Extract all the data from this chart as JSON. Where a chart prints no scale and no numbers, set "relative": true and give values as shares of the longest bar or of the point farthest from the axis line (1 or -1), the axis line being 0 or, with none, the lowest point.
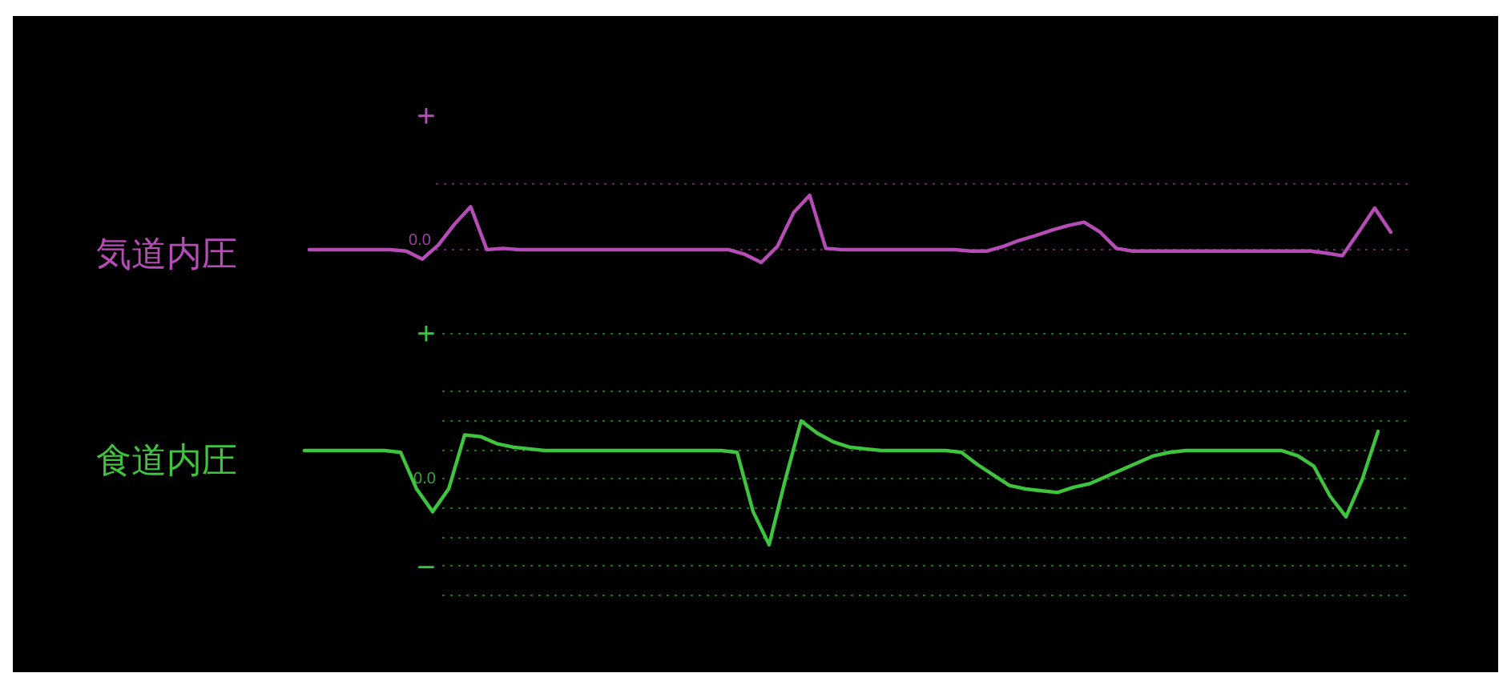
{
  "chart_data": [
    {
      "type": "line",
      "relative": true,
      "ylabel": "気道内圧",
      "annotations": [
        "+",
        "0.0"
      ],
      "ref_lines": [
        {
          "axis": "y",
          "value": 1.17,
          "color": "#b64db6",
          "line_style": "dotted"
        },
        {
          "axis": "y",
          "value": 0.19,
          "color": "#b64db6",
          "line_style": "dotted"
        }
      ],
      "categories": [
        null,
        null,
        null,
        null,
        null,
        null,
        null,
        null,
        null,
        null,
        null,
        null,
        null,
        null,
        null,
        null,
        null,
        null,
        null,
        null,
        null,
        null,
        null,
        null,
        null,
        null,
        null,
        null,
        null,
        null,
        null,
        null,
        null,
        null,
        null,
        null,
        null,
        null,
        null,
        null,
        null,
        null,
        null,
        null,
        null,
        null,
        null,
        null,
        null,
        null,
        null,
        null,
        null,
        null,
        null,
        null,
        null,
        null,
        null,
        null,
        null,
        null,
        null,
        null,
        null,
        null,
        null,
        null
      ],
      "series": [
        {
          "color": "#b64db6",
          "values": [
            0.19,
            0.19,
            0.19,
            0.19,
            0.19,
            0.19,
            0.17,
            0.05,
            0.26,
            0.57,
            0.83,
            0.19,
            0.21,
            0.19,
            0.19,
            0.19,
            0.19,
            0.19,
            0.19,
            0.19,
            0.19,
            0.19,
            0.19,
            0.19,
            0.19,
            0.19,
            0.19,
            0.12,
            0,
            0.24,
            0.74,
            1,
            0.21,
            0.19,
            0.19,
            0.19,
            0.19,
            0.19,
            0.19,
            0.19,
            0.19,
            0.17,
            0.17,
            0.24,
            0.33,
            0.4,
            0.48,
            0.55,
            0.6,
            0.45,
            0.21,
            0.17,
            0.17,
            0.17,
            0.17,
            0.17,
            0.17,
            0.17,
            0.17,
            0.17,
            0.17,
            0.17,
            0.17,
            0.14,
            0.1,
            0.45,
            0.81,
            0.45
          ]
        }
      ]
    },
    {
      "type": "line",
      "relative": true,
      "ylabel": "食道内圧",
      "annotations": [
        "+",
        "0.0",
        "−"
      ],
      "ref_lines": [
        {
          "axis": "y",
          "value": 1.5,
          "color": "#3ec43e",
          "line_style": "dotted"
        },
        {
          "axis": "y",
          "value": 1.17,
          "color": "#3ec43e",
          "line_style": "dotted"
        },
        {
          "axis": "y",
          "value": 1,
          "color": "#3ec43e",
          "line_style": "dotted"
        },
        {
          "axis": "y",
          "value": 0.83,
          "color": "#3ec43e",
          "line_style": "dotted"
        },
        {
          "axis": "y",
          "value": 0.67,
          "color": "#3ec43e",
          "line_style": "dotted"
        },
        {
          "axis": "y",
          "value": 0.5,
          "color": "#3ec43e",
          "line_style": "dotted"
        },
        {
          "axis": "y",
          "value": 0.33,
          "color": "#3ec43e",
          "line_style": "dotted"
        },
        {
          "axis": "y",
          "value": 0.17,
          "color": "#3ec43e",
          "line_style": "dotted"
        },
        {
          "axis": "y",
          "value": 0,
          "color": "#3ec43e",
          "line_style": "dotted"
        }
      ],
      "categories": [
        null,
        null,
        null,
        null,
        null,
        null,
        null,
        null,
        null,
        null,
        null,
        null,
        null,
        null,
        null,
        null,
        null,
        null,
        null,
        null,
        null,
        null,
        null,
        null,
        null,
        null,
        null,
        null,
        null,
        null,
        null,
        null,
        null,
        null,
        null,
        null,
        null,
        null,
        null,
        null,
        null,
        null,
        null,
        null,
        null,
        null,
        null,
        null,
        null,
        null,
        null,
        null,
        null,
        null,
        null,
        null,
        null,
        null,
        null,
        null,
        null,
        null,
        null,
        null,
        null,
        null,
        null,
        null
      ],
      "series": [
        {
          "color": "#3ec43e",
          "values": [
            0.83,
            0.83,
            0.83,
            0.83,
            0.83,
            0.83,
            0.82,
            0.61,
            0.48,
            0.61,
            0.92,
            0.91,
            0.87,
            0.85,
            0.84,
            0.83,
            0.83,
            0.83,
            0.83,
            0.83,
            0.83,
            0.83,
            0.83,
            0.83,
            0.83,
            0.83,
            0.83,
            0.82,
            0.48,
            0.29,
            0.66,
            1,
            0.93,
            0.88,
            0.85,
            0.84,
            0.83,
            0.83,
            0.83,
            0.83,
            0.83,
            0.82,
            0.75,
            0.69,
            0.63,
            0.61,
            0.6,
            0.59,
            0.62,
            0.64,
            0.68,
            0.72,
            0.76,
            0.8,
            0.82,
            0.83,
            0.83,
            0.83,
            0.83,
            0.83,
            0.83,
            0.83,
            0.8,
            0.74,
            0.57,
            0.45,
            0.66,
            0.94
          ]
        }
      ]
    }
  ]
}
